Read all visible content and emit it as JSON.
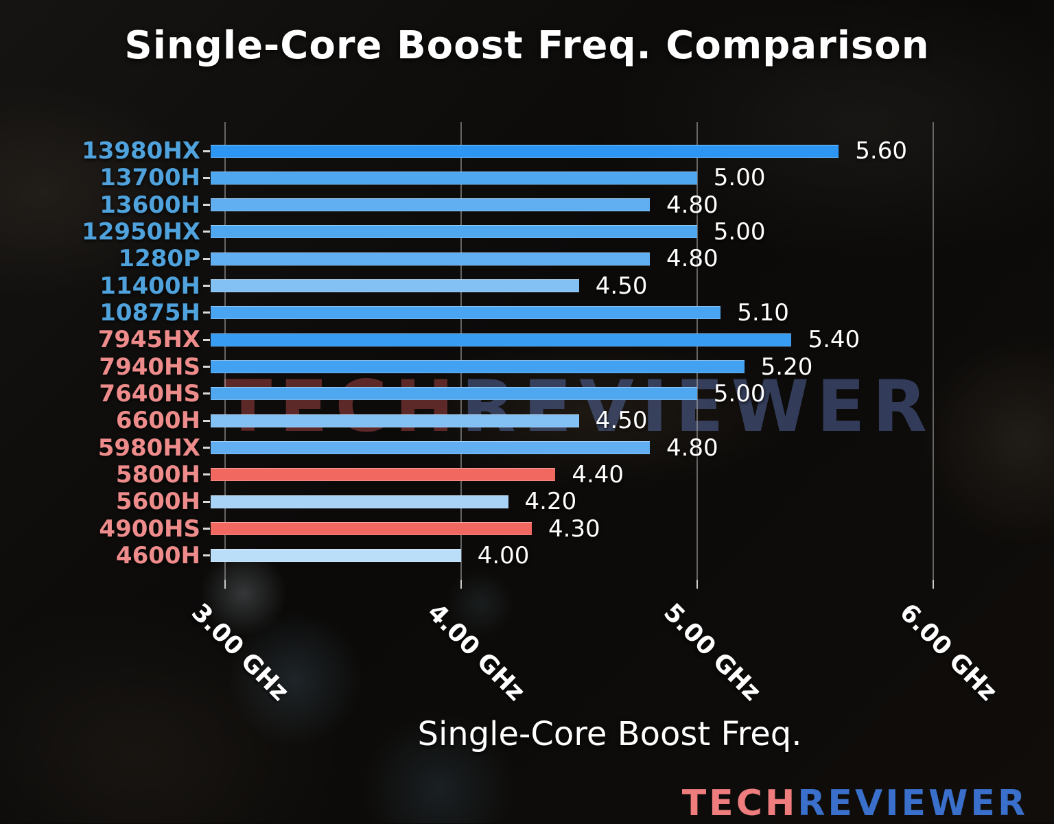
{
  "title": "Single-Core Boost Freq. Comparison",
  "chart_data": {
    "type": "bar",
    "orientation": "horizontal",
    "title": "Single-Core Boost Freq. Comparison",
    "xlabel": "Single-Core Boost Freq.",
    "unit": "GHz",
    "xlim": [
      2.94,
      6.32
    ],
    "grid": "vertical gridlines on",
    "legend": "none",
    "x_ticks": [
      {
        "value": 3.0,
        "label": "3.00 GHz"
      },
      {
        "value": 4.0,
        "label": "4.00 GHz"
      },
      {
        "value": 5.0,
        "label": "5.00 GHz"
      },
      {
        "value": 6.0,
        "label": "6.00 GHz"
      }
    ],
    "categories": [
      "13980HX",
      "13700H",
      "13600H",
      "12950HX",
      "1280P",
      "11400H",
      "10875H",
      "7945HX",
      "7940HS",
      "7640HS",
      "6600H",
      "5980HX",
      "5800H",
      "5600H",
      "4900HS",
      "4600H"
    ],
    "values": [
      5.6,
      5.0,
      4.8,
      5.0,
      4.8,
      4.5,
      5.1,
      5.4,
      5.2,
      5.0,
      4.5,
      4.8,
      4.4,
      4.2,
      4.3,
      4.0
    ],
    "value_labels": [
      "5.60",
      "5.00",
      "4.80",
      "5.00",
      "4.80",
      "4.50",
      "5.10",
      "5.40",
      "5.20",
      "5.00",
      "4.50",
      "4.80",
      "4.40",
      "4.20",
      "4.30",
      "4.00"
    ],
    "bar_colors": [
      "#2D96F2",
      "#4FA7F0",
      "#61AFF1",
      "#4FA7F0",
      "#61AFF1",
      "#83C1F4",
      "#49A4F1",
      "#389CF2",
      "#43A1F1",
      "#4FA7F0",
      "#83C1F4",
      "#61AFF1",
      "#F0685F",
      "#A8D3F6",
      "#F0685F",
      "#BADDF8"
    ],
    "category_label_colors": [
      "#4FA2DC",
      "#4FA2DC",
      "#4FA2DC",
      "#4FA2DC",
      "#4FA2DC",
      "#4FA2DC",
      "#4FA2DC",
      "#EE8C8C",
      "#EE8C8C",
      "#EE8C8C",
      "#EE8C8C",
      "#EE8C8C",
      "#EE8C8C",
      "#EE8C8C",
      "#EE8C8C",
      "#EE8C8C"
    ]
  },
  "watermark": {
    "part1": "TECH",
    "part2": "REVIEWER"
  },
  "logo": {
    "part1": "TECH",
    "part2": "REVIEWER"
  },
  "colors": {
    "value_label": "#FFFFFF",
    "intel_label_blue": "#4FA2DC",
    "amd_label_red": "#EE8C8C",
    "highlight_bar_red": "#F0685F",
    "gridline": "#AFAFAF",
    "logo_tech": "#EF7D7D",
    "logo_reviewer": "#3A70CB"
  }
}
